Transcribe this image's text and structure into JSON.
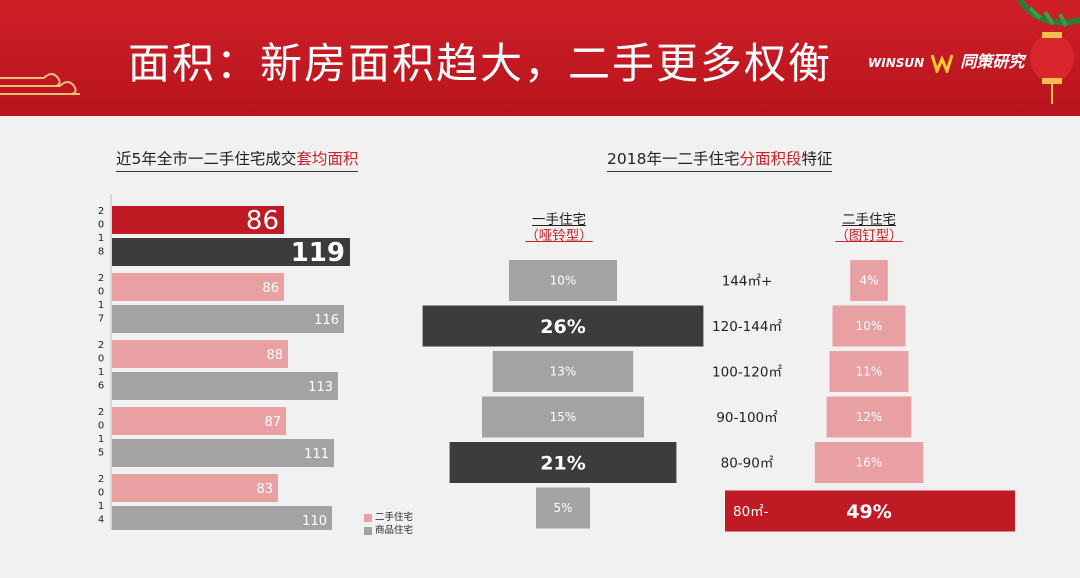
{
  "header": {
    "title": "面积：新房面积趋大，二手更多权衡",
    "logo_en": "WINSUN",
    "logo_cn": "同策研究"
  },
  "colors": {
    "header_red": "#c8232b",
    "second_hand": "#e8a0a3",
    "commercial": "#a3a3a3",
    "highlight_dark": "#3c3c3c",
    "highlight_red": "#c01a24"
  },
  "left_chart": {
    "title_pre": "近5年全市一二手住宅成交",
    "title_hl": "套均面积",
    "legend": [
      "二手住宅",
      "商品住宅"
    ]
  },
  "right_section": {
    "title_pre": "2018年一二手住宅",
    "title_hl": "分面积段",
    "title_post": "特征",
    "col1_title": "一手住宅",
    "col1_sub": "（哑铃型）",
    "col2_title": "二手住宅",
    "col2_sub": "（图钉型）"
  },
  "chart_data": [
    {
      "type": "bar",
      "orientation": "horizontal",
      "categories": [
        "2018",
        "2017",
        "2016",
        "2015",
        "2014"
      ],
      "category_labels": [
        [
          "2",
          "0",
          "1",
          "8"
        ],
        [
          "2",
          "0",
          "1",
          "7"
        ],
        [
          "2",
          "0",
          "1",
          "6"
        ],
        [
          "2",
          "0",
          "1",
          "5"
        ],
        [
          "2",
          "0",
          "1",
          "4"
        ]
      ],
      "series": [
        {
          "name": "二手住宅",
          "values": [
            86,
            86,
            88,
            87,
            83
          ]
        },
        {
          "name": "商品住宅",
          "values": [
            119,
            116,
            113,
            111,
            110
          ]
        }
      ],
      "highlight_category": "2018",
      "title": "近5年全市一二手住宅成交套均面积",
      "legend_position": "bottom-right"
    },
    {
      "type": "bar",
      "orientation": "centered",
      "categories": [
        "144㎡+",
        "120-144㎡",
        "100-120㎡",
        "90-100㎡",
        "80-90㎡",
        "80㎡-"
      ],
      "series": [
        {
          "name": "一手住宅",
          "values": [
            10,
            26,
            13,
            15,
            21,
            5
          ],
          "labels": [
            "10%",
            "26%",
            "13%",
            "15%",
            "21%",
            "5%"
          ],
          "highlight": [
            1,
            4
          ]
        },
        {
          "name": "二手住宅",
          "values": [
            4,
            10,
            11,
            12,
            16,
            49
          ],
          "labels": [
            "4%",
            "10%",
            "11%",
            "12%",
            "16%",
            "49%"
          ],
          "highlight": [
            5
          ]
        }
      ],
      "title": "2018年一二手住宅分面积段特征"
    }
  ]
}
